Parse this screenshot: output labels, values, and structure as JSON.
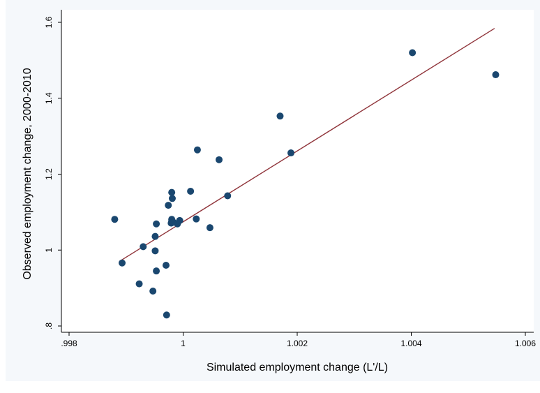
{
  "chart_data": {
    "type": "scatter",
    "title": "",
    "xlabel": "Simulated employment change (L'/L)",
    "ylabel": "Observed employment change, 2000-2010",
    "xlim": [
      0.998,
      1.006
    ],
    "ylim": [
      0.8,
      1.6
    ],
    "xticks": [
      0.998,
      1,
      1.002,
      1.004,
      1.006
    ],
    "xtick_labels": [
      ".998",
      "1",
      "1.002",
      "1.004",
      "1.006"
    ],
    "yticks": [
      0.8,
      1,
      1.2,
      1.4,
      1.6
    ],
    "ytick_labels": [
      ".8",
      "1",
      "1.2",
      "1.4",
      "1.6"
    ],
    "grid": false,
    "colors": {
      "points": "#1a476f",
      "fit_line": "#90353b",
      "plot_border": "#000000",
      "outer_background": "#f5f8fb"
    },
    "series": [
      {
        "type": "scatter",
        "x": [
          0.9988,
          0.99893,
          0.99923,
          0.9993,
          0.99947,
          0.99951,
          0.99951,
          0.99953,
          0.99953,
          0.9997,
          0.99971,
          0.99974,
          0.99979,
          0.9998,
          0.9998,
          0.9998,
          0.99981,
          0.99983,
          0.9999,
          0.99994,
          1.00013,
          1.00023,
          1.00025,
          1.00047,
          1.00063,
          1.00078,
          1.0017,
          1.00189,
          1.00402,
          1.00548
        ],
        "y": [
          1.081,
          0.966,
          0.911,
          1.009,
          0.892,
          1.036,
          0.998,
          0.945,
          1.069,
          0.96,
          0.829,
          1.118,
          1.071,
          1.081,
          1.076,
          1.152,
          1.136,
          1.073,
          1.069,
          1.078,
          1.155,
          1.082,
          1.264,
          1.059,
          1.238,
          1.143,
          1.353,
          1.256,
          1.52,
          1.462
        ]
      },
      {
        "type": "line",
        "x": [
          0.99888,
          1.00546
        ],
        "y": [
          0.97,
          1.584
        ]
      }
    ]
  }
}
